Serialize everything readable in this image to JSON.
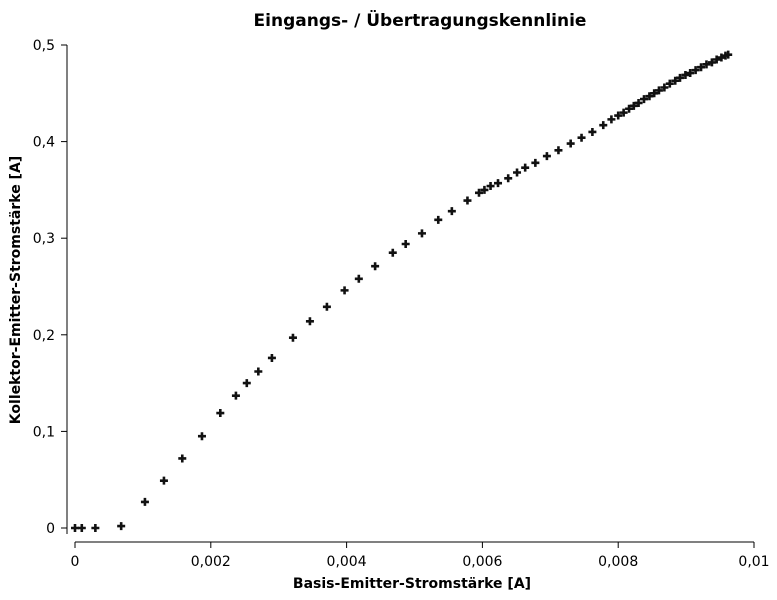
{
  "chart_data": {
    "type": "scatter",
    "title": "Eingangs- / Übertragungskennlinie",
    "xlabel": "Basis-Emitter-Stromstärke [A]",
    "ylabel": "Kollektor-Emitter-Stromstärke [A]",
    "xlim": [
      0,
      0.01
    ],
    "ylim": [
      0,
      0.5
    ],
    "x_ticks": [
      "0",
      "0,002",
      "0,004",
      "0,006",
      "0,008",
      "0,01"
    ],
    "y_ticks": [
      "0",
      "0,1",
      "0,2",
      "0,3",
      "0,4",
      "0,5"
    ],
    "x_tick_values": [
      0,
      0.002,
      0.004,
      0.006,
      0.008,
      0.01
    ],
    "y_tick_values": [
      0,
      0.1,
      0.2,
      0.3,
      0.4,
      0.5
    ],
    "grid": false,
    "marker": "plus",
    "color": "#111111",
    "points": [
      [
        0.0,
        0.0
      ],
      [
        0.0001,
        0.0
      ],
      [
        0.0003,
        0.0
      ],
      [
        0.00068,
        0.002
      ],
      [
        0.00103,
        0.027
      ],
      [
        0.00131,
        0.049
      ],
      [
        0.00158,
        0.072
      ],
      [
        0.00187,
        0.095
      ],
      [
        0.00214,
        0.119
      ],
      [
        0.00237,
        0.137
      ],
      [
        0.00253,
        0.15
      ],
      [
        0.0027,
        0.162
      ],
      [
        0.0029,
        0.176
      ],
      [
        0.00321,
        0.197
      ],
      [
        0.00346,
        0.214
      ],
      [
        0.00371,
        0.229
      ],
      [
        0.00397,
        0.246
      ],
      [
        0.00418,
        0.258
      ],
      [
        0.00442,
        0.271
      ],
      [
        0.00468,
        0.285
      ],
      [
        0.00487,
        0.294
      ],
      [
        0.00511,
        0.305
      ],
      [
        0.00535,
        0.319
      ],
      [
        0.00555,
        0.328
      ],
      [
        0.00578,
        0.339
      ],
      [
        0.00595,
        0.347
      ],
      [
        0.00603,
        0.35
      ],
      [
        0.00612,
        0.354
      ],
      [
        0.00623,
        0.357
      ],
      [
        0.00638,
        0.362
      ],
      [
        0.00651,
        0.368
      ],
      [
        0.00663,
        0.373
      ],
      [
        0.00678,
        0.378
      ],
      [
        0.00695,
        0.385
      ],
      [
        0.00712,
        0.391
      ],
      [
        0.0073,
        0.398
      ],
      [
        0.00746,
        0.404
      ],
      [
        0.00762,
        0.41
      ],
      [
        0.00778,
        0.417
      ],
      [
        0.0079,
        0.423
      ],
      [
        0.008,
        0.427
      ],
      [
        0.00808,
        0.43
      ],
      [
        0.00816,
        0.434
      ],
      [
        0.00823,
        0.437
      ],
      [
        0.0083,
        0.44
      ],
      [
        0.00838,
        0.444
      ],
      [
        0.00846,
        0.447
      ],
      [
        0.00853,
        0.45
      ],
      [
        0.0086,
        0.453
      ],
      [
        0.00868,
        0.456
      ],
      [
        0.00876,
        0.46
      ],
      [
        0.00884,
        0.463
      ],
      [
        0.00891,
        0.466
      ],
      [
        0.00899,
        0.469
      ],
      [
        0.00906,
        0.471
      ],
      [
        0.00914,
        0.474
      ],
      [
        0.00922,
        0.477
      ],
      [
        0.0093,
        0.48
      ],
      [
        0.00938,
        0.482
      ],
      [
        0.00945,
        0.485
      ],
      [
        0.00952,
        0.487
      ],
      [
        0.00958,
        0.489
      ],
      [
        0.00962,
        0.49
      ]
    ]
  }
}
